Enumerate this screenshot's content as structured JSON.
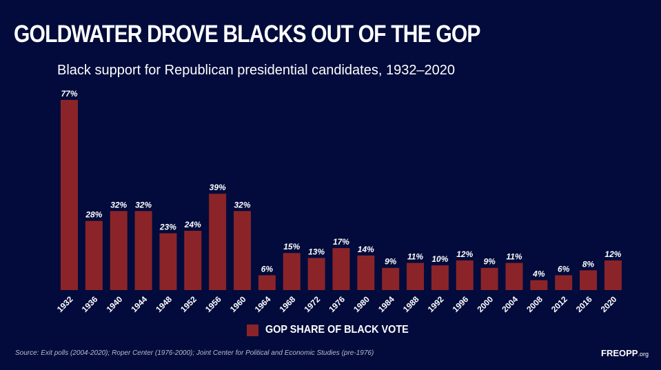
{
  "header": {
    "title": "GOLDWATER DROVE BLACKS OUT OF THE GOP",
    "subtitle": "Black support for Republican presidential candidates, 1932–2020"
  },
  "chart_data": {
    "type": "bar",
    "title": "GOLDWATER DROVE BLACKS OUT OF THE GOP",
    "subtitle": "Black support for Republican presidential candidates, 1932–2020",
    "categories": [
      "1932",
      "1936",
      "1940",
      "1944",
      "1948",
      "1952",
      "1956",
      "1960",
      "1964",
      "1968",
      "1972",
      "1976",
      "1980",
      "1984",
      "1988",
      "1992",
      "1996",
      "2000",
      "2004",
      "2008",
      "2012",
      "2016",
      "2020"
    ],
    "series": [
      {
        "name": "GOP SHARE OF BLACK VOTE",
        "values": [
          77,
          28,
          32,
          32,
          23,
          24,
          39,
          32,
          6,
          15,
          13,
          17,
          14,
          9,
          11,
          10,
          12,
          9,
          11,
          4,
          6,
          8,
          12
        ],
        "color": "#8b2428"
      }
    ],
    "value_suffix": "%",
    "ylim": [
      0,
      80
    ],
    "grid": false,
    "legend": "bottom-center",
    "background": "#020b3b"
  },
  "legend": {
    "label": "GOP SHARE OF BLACK VOTE"
  },
  "footer": {
    "source": "Source: Exit polls (2004-2020); Roper Center (1976-2000); Joint Center for Political and Economic Studies (pre-1976)",
    "logo_main": "FREOPP",
    "logo_suffix": ".org"
  }
}
